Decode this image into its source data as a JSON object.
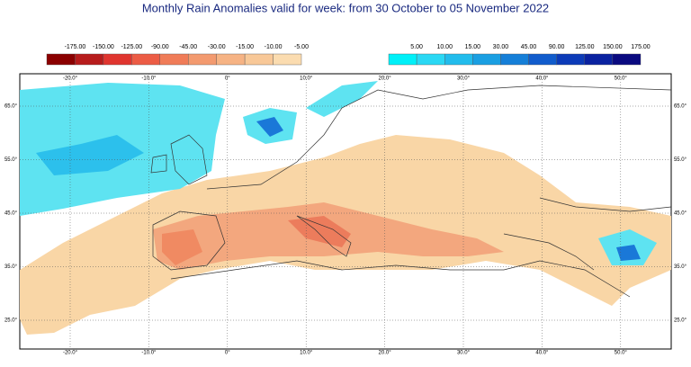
{
  "title": "Monthly Rain Anomalies valid for week: from 30 October to 05 November 2022",
  "legend": {
    "negative": {
      "labels": [
        "-175.00",
        "-150.00",
        "-125.00",
        "-90.00",
        "-45.00",
        "-30.00",
        "-15.00",
        "-10.00",
        "-5.00"
      ],
      "colors": [
        "#8b0000",
        "#b71c1c",
        "#e0352f",
        "#ec5c45",
        "#f07c58",
        "#f39a6f",
        "#f6b384",
        "#f8c898",
        "#fbdcb0"
      ]
    },
    "positive": {
      "labels": [
        "5.00",
        "10.00",
        "15.00",
        "30.00",
        "45.00",
        "90.00",
        "125.00",
        "150.00",
        "175.00"
      ],
      "colors": [
        "#00f0f8",
        "#2ad8f4",
        "#22bcec",
        "#1a9fe2",
        "#157fd8",
        "#115ccc",
        "#0c3bb8",
        "#0a22a0",
        "#0a0a80"
      ]
    }
  },
  "map": {
    "longitude_labels": [
      "-20.0°",
      "-10.0°",
      "0°",
      "10.0°",
      "20.0°",
      "30.0°",
      "40.0°",
      "50.0°"
    ],
    "latitude_labels": [
      "65.0°",
      "55.0°",
      "45.0°",
      "35.0°",
      "25.0°"
    ]
  }
}
